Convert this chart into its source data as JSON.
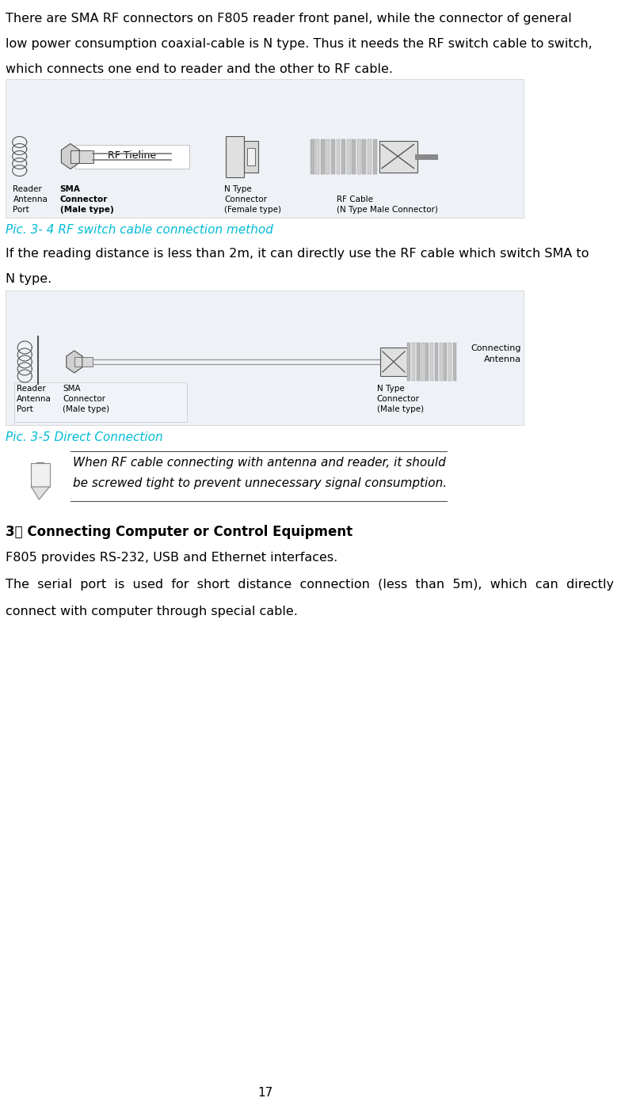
{
  "page_number": "17",
  "bg_color": "#ffffff",
  "para1_line1": "There are SMA RF connectors on F805 reader front panel, while the connector of general",
  "para1_line2": "low power consumption coaxial-cable is N type. Thus it needs the RF switch cable to switch,",
  "para1_line3": "which connects one end to reader and the other to RF cable.",
  "pic1_caption": "Pic. 3- 4 RF switch cable connection method",
  "pic1_caption_color": "#00bcd4",
  "para2_line1": "If the reading distance is less than 2m, it can directly use the RF cable which switch SMA to",
  "para2_line2": "N type.",
  "pic2_caption": "Pic. 3-5 Direct Connection",
  "pic2_caption_color": "#00bcd4",
  "note_line1": "When RF cable connecting with antenna and reader, it should",
  "note_line2": "be screwed tight to prevent unnecessary signal consumption.",
  "section_title": "3． Connecting Computer or Control Equipment",
  "para3_line1": "F805 provides RS-232, USB and Ethernet interfaces.",
  "para4_line1": "The  serial  port  is  used  for  short  distance  connection  (less  than  5m),  which  can  directly",
  "para5_line1": "connect with computer through special cable.",
  "text_color": "#000000",
  "text_fontsize": 11.5,
  "caption_fontsize": 11,
  "section_fontsize": 12,
  "img1_bg": "#eef2f7",
  "img2_bg": "#eef2f7"
}
